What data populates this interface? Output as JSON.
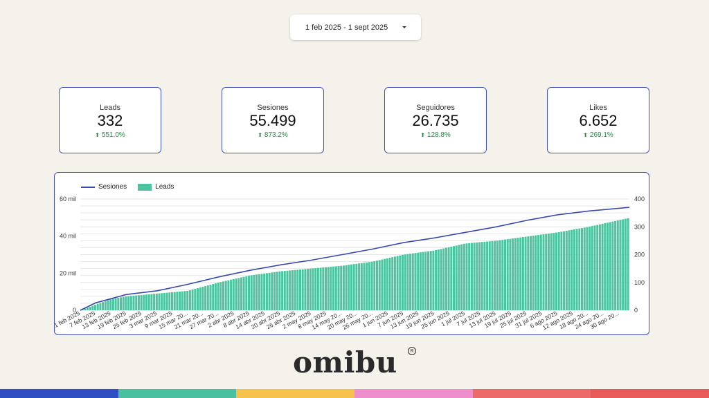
{
  "date_range": {
    "label": "1 feb 2025 - 1 sept 2025"
  },
  "kpis": [
    {
      "label": "Leads",
      "value": "332",
      "delta": "551.0%"
    },
    {
      "label": "Sesiones",
      "value": "55.499",
      "delta": "873.2%"
    },
    {
      "label": "Seguidores",
      "value": "26.735",
      "delta": "128.8%"
    },
    {
      "label": "Likes",
      "value": "6.652",
      "delta": "269.1%"
    }
  ],
  "chart_data": {
    "type": "bar",
    "legend": {
      "position": "top-left"
    },
    "grid": true,
    "left_axis": {
      "ticks": [
        "0",
        "20 mil",
        "40 mil",
        "60 mil"
      ],
      "ylim": [
        0,
        60000
      ]
    },
    "right_axis": {
      "ticks": [
        "0",
        "100",
        "200",
        "300",
        "400"
      ],
      "ylim": [
        0,
        400
      ]
    },
    "x_tick_labels": [
      "1 feb 2025",
      "7 feb 2025",
      "13 feb 2025",
      "19 feb 2025",
      "25 feb 2025",
      "3 mar 2025",
      "9 mar 2025",
      "15 mar 20...",
      "21 mar 20...",
      "27 mar 20...",
      "2 abr 2025",
      "8 abr 2025",
      "14 abr 2025",
      "20 abr 2025",
      "26 abr 2025",
      "2 may 2025",
      "8 may 2025",
      "14 may 20...",
      "20 may 20...",
      "26 may 20...",
      "1 jun 2025",
      "7 jun 2025",
      "13 jun 2025",
      "19 jun 2025",
      "25 jun 2025",
      "1 jul 2025",
      "7 jul 2025",
      "13 jul 2025",
      "19 jul 2025",
      "25 jul 2025",
      "31 jul 2025",
      "6 ago 2025",
      "12 ago 2025",
      "18 ago 20...",
      "24 ago 20...",
      "30 ago 20..."
    ],
    "series": [
      {
        "name": "Sesiones",
        "type": "line",
        "axis": "left",
        "color": "#3949ab",
        "points": [
          [
            "1 feb 2025",
            0
          ],
          [
            "7 feb 2025",
            4000
          ],
          [
            "19 feb 2025",
            8500
          ],
          [
            "3 mar 2025",
            10500
          ],
          [
            "15 mar 20...",
            14000
          ],
          [
            "27 mar 20...",
            18000
          ],
          [
            "8 abr 2025",
            21500
          ],
          [
            "20 abr 2025",
            24500
          ],
          [
            "2 may 2025",
            27000
          ],
          [
            "14 may 20...",
            30000
          ],
          [
            "26 may 20...",
            33000
          ],
          [
            "7 jun 2025",
            36500
          ],
          [
            "19 jun 2025",
            39000
          ],
          [
            "1 jul 2025",
            42000
          ],
          [
            "13 jul 2025",
            45000
          ],
          [
            "25 jul 2025",
            48500
          ],
          [
            "6 ago 2025",
            51500
          ],
          [
            "18 ago 20...",
            53500
          ],
          [
            "1 sept 2025",
            55499
          ]
        ]
      },
      {
        "name": "Leads",
        "type": "bar",
        "axis": "right",
        "color": "#4dc4a0",
        "points": [
          [
            "1 feb 2025",
            0
          ],
          [
            "7 feb 2025",
            20
          ],
          [
            "13 feb 2025",
            40
          ],
          [
            "19 feb 2025",
            50
          ],
          [
            "3 mar 2025",
            60
          ],
          [
            "15 mar 20...",
            70
          ],
          [
            "27 mar 20...",
            100
          ],
          [
            "8 abr 2025",
            125
          ],
          [
            "20 abr 2025",
            140
          ],
          [
            "2 may 2025",
            150
          ],
          [
            "14 may 20...",
            160
          ],
          [
            "26 may 20...",
            175
          ],
          [
            "7 jun 2025",
            200
          ],
          [
            "19 jun 2025",
            215
          ],
          [
            "1 jul 2025",
            240
          ],
          [
            "13 jul 2025",
            250
          ],
          [
            "25 jul 2025",
            265
          ],
          [
            "6 ago 2025",
            280
          ],
          [
            "18 ago 20...",
            300
          ],
          [
            "1 sept 2025",
            332
          ]
        ]
      }
    ]
  },
  "brand": {
    "logo_text": "omibu",
    "registered_mark": "R"
  },
  "footer_colors": [
    "#2f4ec2",
    "#4bc0a0",
    "#f4c24a",
    "#ef8ecb",
    "#ec6a6a",
    "#e85a5a"
  ]
}
